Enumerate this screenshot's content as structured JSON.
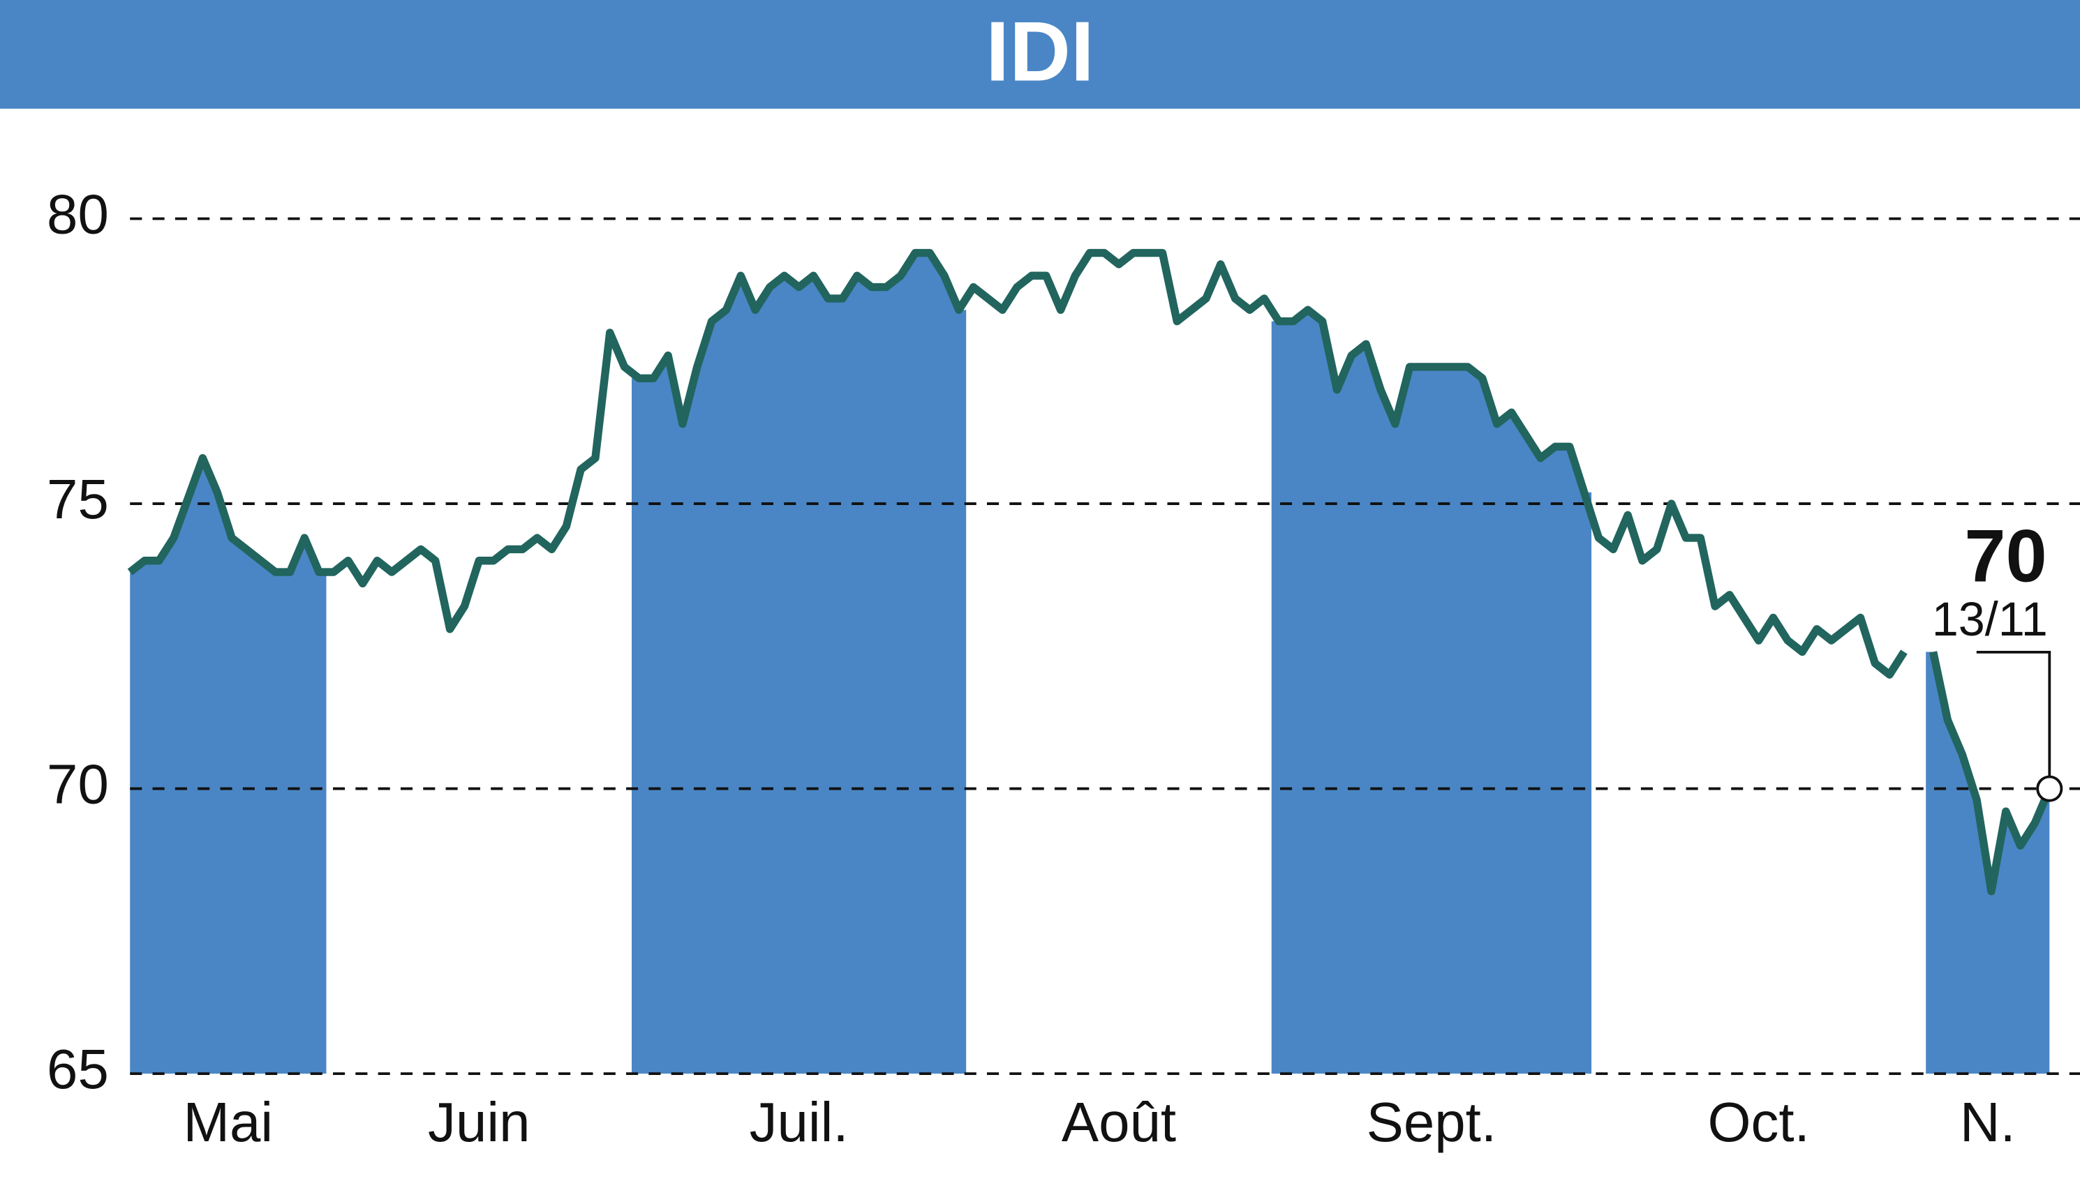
{
  "chart_data": {
    "type": "line",
    "title": "IDI",
    "ylim": [
      65,
      80
    ],
    "yticks": [
      65,
      70,
      75,
      80
    ],
    "grid": true,
    "line_color": "#21655e",
    "fill_color": "#4a86c5",
    "last_date": "13/11",
    "months": [
      {
        "label": "Mai",
        "values": [
          73.8,
          74.0,
          74.0,
          74.4,
          75.1,
          75.8,
          75.2,
          74.4,
          74.2,
          74.0,
          73.8,
          73.8,
          74.4,
          73.8
        ]
      },
      {
        "label": "Juin",
        "values": [
          73.8,
          74.0,
          73.6,
          74.0,
          73.8,
          74.0,
          74.2,
          74.0,
          72.8,
          73.2,
          74.0,
          74.0,
          74.2,
          74.2,
          74.4,
          74.2,
          74.6,
          75.6,
          75.8,
          78.0,
          77.4
        ]
      },
      {
        "label": "Juil.",
        "values": [
          77.2,
          77.2,
          77.6,
          76.4,
          77.4,
          78.2,
          78.4,
          79.0,
          78.4,
          78.8,
          79.0,
          78.8,
          79.0,
          78.6,
          78.6,
          79.0,
          78.8,
          78.8,
          79.0,
          79.4,
          79.4,
          79.0,
          78.4
        ]
      },
      {
        "label": "Août",
        "values": [
          78.8,
          78.6,
          78.4,
          78.8,
          79.0,
          79.0,
          78.4,
          79.0,
          79.4,
          79.4,
          79.2,
          79.4,
          79.4,
          79.4,
          78.2,
          78.4,
          78.6,
          79.2,
          78.6,
          78.4,
          78.6
        ]
      },
      {
        "label": "Sept.",
        "values": [
          78.2,
          78.2,
          78.4,
          78.2,
          77.0,
          77.6,
          77.8,
          77.0,
          76.4,
          77.4,
          77.4,
          77.4,
          77.4,
          77.4,
          77.2,
          76.4,
          76.6,
          76.2,
          75.8,
          76.0,
          76.0,
          75.2
        ]
      },
      {
        "label": "Oct.",
        "values": [
          74.4,
          74.2,
          74.8,
          74.0,
          74.2,
          75.0,
          74.4,
          74.4,
          73.2,
          73.4,
          73.0,
          72.6,
          73.0,
          72.6,
          72.4,
          72.8,
          72.6,
          72.8,
          73.0,
          72.2,
          72.0,
          72.4,
          null
        ]
      },
      {
        "label": "N.",
        "values": [
          72.4,
          71.2,
          70.6,
          69.8,
          68.2,
          69.6,
          69.0,
          69.4,
          70
        ]
      }
    ]
  }
}
